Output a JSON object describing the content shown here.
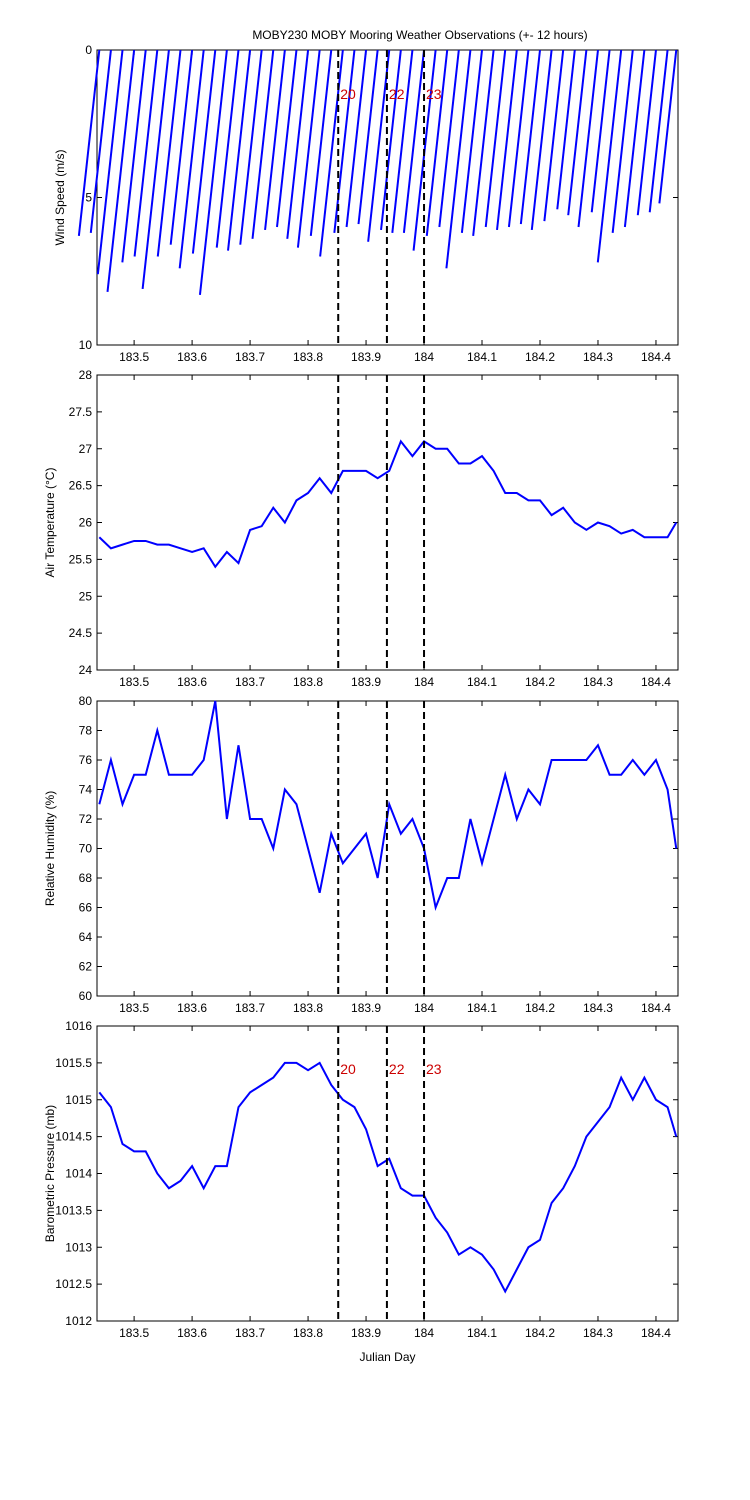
{
  "chart_data": [
    {
      "type": "stick",
      "title": "MOBY230 MOBY Mooring Weather Observations (+- 12 hours)",
      "ylabel": "Wind Speed (m/s)",
      "color": "#0000ff",
      "xlim": [
        183.436,
        184.438
      ],
      "xticks": [
        183.5,
        183.6,
        183.7,
        183.8,
        183.9,
        184,
        184.1,
        184.2,
        184.3,
        184.4
      ],
      "ylim": [
        10,
        0
      ],
      "yticks": [
        0,
        5,
        10
      ],
      "vlines": [
        183.852,
        183.936,
        184.0
      ],
      "vline_labels": [
        "20",
        "22",
        "23"
      ],
      "x": [
        183.44,
        183.46,
        183.48,
        183.5,
        183.52,
        183.54,
        183.56,
        183.58,
        183.6,
        183.62,
        183.64,
        183.66,
        183.68,
        183.7,
        183.72,
        183.74,
        183.76,
        183.78,
        183.8,
        183.82,
        183.84,
        183.86,
        183.88,
        183.9,
        183.92,
        183.94,
        183.96,
        183.98,
        184.0,
        184.02,
        184.04,
        184.06,
        184.08,
        184.1,
        184.12,
        184.14,
        184.16,
        184.18,
        184.2,
        184.22,
        184.24,
        184.26,
        184.28,
        184.3,
        184.32,
        184.34,
        184.36,
        184.38,
        184.4,
        184.42,
        184.435
      ],
      "values": [
        6.3,
        6.2,
        7.6,
        8.2,
        7.2,
        7.0,
        8.1,
        7.0,
        6.6,
        7.4,
        6.9,
        8.3,
        6.7,
        6.8,
        6.6,
        6.4,
        6.1,
        6.0,
        6.4,
        6.7,
        6.3,
        7.0,
        6.2,
        6.0,
        5.9,
        6.5,
        6.1,
        6.2,
        6.2,
        6.8,
        6.3,
        6.0,
        7.4,
        6.2,
        6.3,
        6.0,
        6.1,
        6.0,
        5.9,
        6.1,
        5.8,
        5.4,
        5.6,
        6.0,
        5.5,
        7.2,
        6.2,
        6.0,
        5.6,
        5.5,
        5.2
      ]
    },
    {
      "type": "line",
      "ylabel": "Air Temperature (°C)",
      "color": "#0000ff",
      "xlim": [
        183.436,
        184.438
      ],
      "xticks": [
        183.5,
        183.6,
        183.7,
        183.8,
        183.9,
        184,
        184.1,
        184.2,
        184.3,
        184.4
      ],
      "ylim": [
        24,
        28
      ],
      "yticks": [
        24,
        24.5,
        25,
        25.5,
        26,
        26.5,
        27,
        27.5,
        28
      ],
      "vlines": [
        183.852,
        183.936,
        184.0
      ],
      "x": [
        183.44,
        183.46,
        183.48,
        183.5,
        183.52,
        183.54,
        183.56,
        183.58,
        183.6,
        183.62,
        183.64,
        183.66,
        183.68,
        183.7,
        183.72,
        183.74,
        183.76,
        183.78,
        183.8,
        183.82,
        183.84,
        183.86,
        183.88,
        183.9,
        183.92,
        183.94,
        183.96,
        183.98,
        184.0,
        184.02,
        184.04,
        184.06,
        184.08,
        184.1,
        184.12,
        184.14,
        184.16,
        184.18,
        184.2,
        184.22,
        184.24,
        184.26,
        184.28,
        184.3,
        184.32,
        184.34,
        184.36,
        184.38,
        184.4,
        184.42,
        184.435
      ],
      "values": [
        25.8,
        25.65,
        25.7,
        25.75,
        25.75,
        25.7,
        25.7,
        25.65,
        25.6,
        25.65,
        25.4,
        25.6,
        25.45,
        25.9,
        25.95,
        26.2,
        26.0,
        26.3,
        26.4,
        26.6,
        26.4,
        26.7,
        26.7,
        26.7,
        26.6,
        26.7,
        27.1,
        26.9,
        27.1,
        27.0,
        27.0,
        26.8,
        26.8,
        26.9,
        26.7,
        26.4,
        26.4,
        26.3,
        26.3,
        26.1,
        26.2,
        26.0,
        25.9,
        26.0,
        25.95,
        25.85,
        25.9,
        25.8,
        25.8,
        25.8,
        26.0
      ]
    },
    {
      "type": "line",
      "ylabel": "Relative Humidity (%)",
      "color": "#0000ff",
      "xlim": [
        183.436,
        184.438
      ],
      "xticks": [
        183.5,
        183.6,
        183.7,
        183.8,
        183.9,
        184,
        184.1,
        184.2,
        184.3,
        184.4
      ],
      "ylim": [
        60,
        80
      ],
      "yticks": [
        60,
        62,
        64,
        66,
        68,
        70,
        72,
        74,
        76,
        78,
        80
      ],
      "vlines": [
        183.852,
        183.936,
        184.0
      ],
      "x": [
        183.44,
        183.46,
        183.48,
        183.5,
        183.52,
        183.54,
        183.56,
        183.58,
        183.6,
        183.62,
        183.64,
        183.66,
        183.68,
        183.7,
        183.72,
        183.74,
        183.76,
        183.78,
        183.8,
        183.82,
        183.84,
        183.86,
        183.88,
        183.9,
        183.92,
        183.94,
        183.96,
        183.98,
        184.0,
        184.02,
        184.04,
        184.06,
        184.08,
        184.1,
        184.12,
        184.14,
        184.16,
        184.18,
        184.2,
        184.22,
        184.24,
        184.26,
        184.28,
        184.3,
        184.32,
        184.34,
        184.36,
        184.38,
        184.4,
        184.42,
        184.435
      ],
      "values": [
        73,
        76,
        73,
        75,
        75,
        78,
        75,
        75,
        75,
        76,
        80,
        72,
        77,
        72,
        72,
        70,
        74,
        73,
        70,
        67,
        71,
        69,
        70,
        71,
        68,
        73,
        71,
        72,
        70,
        66,
        68,
        68,
        72,
        69,
        72,
        75,
        72,
        74,
        73,
        76,
        76,
        76,
        76,
        77,
        75,
        75,
        76,
        75,
        76,
        74,
        70
      ]
    },
    {
      "type": "line",
      "ylabel": "Barometric Pressure (mb)",
      "xlabel": "Julian Day",
      "color": "#0000ff",
      "xlim": [
        183.436,
        184.438
      ],
      "xticks": [
        183.5,
        183.6,
        183.7,
        183.8,
        183.9,
        184,
        184.1,
        184.2,
        184.3,
        184.4
      ],
      "ylim": [
        1012,
        1016
      ],
      "yticks": [
        1012,
        1012.5,
        1013,
        1013.5,
        1014,
        1014.5,
        1015,
        1015.5,
        1016
      ],
      "vlines": [
        183.852,
        183.936,
        184.0
      ],
      "vline_labels": [
        "20",
        "22",
        "23"
      ],
      "x": [
        183.44,
        183.46,
        183.48,
        183.5,
        183.52,
        183.54,
        183.56,
        183.58,
        183.6,
        183.62,
        183.64,
        183.66,
        183.68,
        183.7,
        183.72,
        183.74,
        183.76,
        183.78,
        183.8,
        183.82,
        183.84,
        183.86,
        183.88,
        183.9,
        183.92,
        183.94,
        183.96,
        183.98,
        184.0,
        184.02,
        184.04,
        184.06,
        184.08,
        184.1,
        184.12,
        184.14,
        184.16,
        184.18,
        184.2,
        184.22,
        184.24,
        184.26,
        184.28,
        184.3,
        184.32,
        184.34,
        184.36,
        184.38,
        184.4,
        184.42,
        184.435
      ],
      "values": [
        1015.1,
        1014.9,
        1014.4,
        1014.3,
        1014.3,
        1014.0,
        1013.8,
        1013.9,
        1014.1,
        1013.8,
        1014.1,
        1014.1,
        1014.9,
        1015.1,
        1015.2,
        1015.3,
        1015.5,
        1015.5,
        1015.4,
        1015.5,
        1015.2,
        1015.0,
        1014.9,
        1014.6,
        1014.1,
        1014.2,
        1013.8,
        1013.7,
        1013.7,
        1013.4,
        1013.2,
        1012.9,
        1013.0,
        1012.9,
        1012.7,
        1012.4,
        1012.7,
        1013.0,
        1013.1,
        1013.6,
        1013.8,
        1014.1,
        1014.5,
        1014.7,
        1014.9,
        1015.3,
        1015.0,
        1015.3,
        1015.0,
        1014.9,
        1014.5
      ]
    }
  ]
}
